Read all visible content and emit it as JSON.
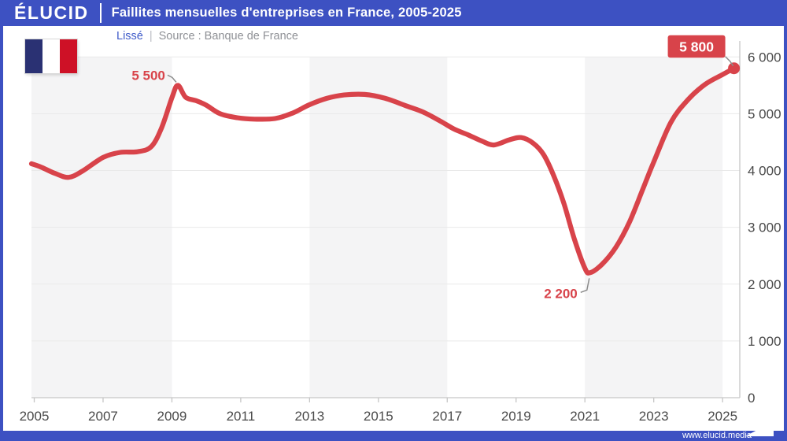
{
  "header": {
    "logo": "ÉLUCID",
    "title": "Faillites mensuelles d'entreprises en France, 2005-2025"
  },
  "subtitle": {
    "series_label": "Lissé",
    "separator": "|",
    "source": "Source : Banque de France"
  },
  "flag": {
    "blue": "#2A3173",
    "white": "#FFFFFF",
    "red": "#CE1126"
  },
  "footer": {
    "url": "www.elucid.media"
  },
  "colors": {
    "accent_blue": "#3D51C2",
    "line_red": "#D8434A",
    "band_gray": "#F4F4F5",
    "grid_gray": "#E9E9E9",
    "axis_gray": "#C6C6C6",
    "tick_text": "#4A4A4A",
    "callout_gray": "#8C8C8C"
  },
  "chart_data": {
    "type": "line",
    "title": "Faillites mensuelles d'entreprises en France, 2005-2025",
    "xlabel": "",
    "ylabel": "",
    "xlim": [
      2004.92,
      2025.5
    ],
    "ylim": [
      0,
      6000
    ],
    "grid": "horizontal",
    "y_ticks": [
      {
        "value": 0,
        "label": "0"
      },
      {
        "value": 1000,
        "label": "1 000"
      },
      {
        "value": 2000,
        "label": "2 000"
      },
      {
        "value": 3000,
        "label": "3 000"
      },
      {
        "value": 4000,
        "label": "4 000"
      },
      {
        "value": 5000,
        "label": "5 000"
      },
      {
        "value": 6000,
        "label": "6 000"
      }
    ],
    "x_ticks": [
      {
        "value": 2005,
        "label": "2005"
      },
      {
        "value": 2007,
        "label": "2007"
      },
      {
        "value": 2009,
        "label": "2009"
      },
      {
        "value": 2011,
        "label": "2011"
      },
      {
        "value": 2013,
        "label": "2013"
      },
      {
        "value": 2015,
        "label": "2015"
      },
      {
        "value": 2017,
        "label": "2017"
      },
      {
        "value": 2019,
        "label": "2019"
      },
      {
        "value": 2021,
        "label": "2021"
      },
      {
        "value": 2023,
        "label": "2023"
      },
      {
        "value": 2025,
        "label": "2025"
      }
    ],
    "shaded_bands": [
      [
        2004.92,
        2009
      ],
      [
        2013,
        2017
      ],
      [
        2021,
        2025
      ]
    ],
    "series": [
      {
        "name": "Faillites mensuelles (lissé)",
        "color": "#D8434A",
        "points": [
          [
            2004.92,
            4120
          ],
          [
            2005.2,
            4060
          ],
          [
            2005.6,
            3950
          ],
          [
            2006.0,
            3880
          ],
          [
            2006.4,
            3990
          ],
          [
            2007.0,
            4230
          ],
          [
            2007.5,
            4320
          ],
          [
            2008.0,
            4330
          ],
          [
            2008.4,
            4420
          ],
          [
            2008.7,
            4750
          ],
          [
            2009.0,
            5280
          ],
          [
            2009.17,
            5500
          ],
          [
            2009.4,
            5290
          ],
          [
            2009.7,
            5230
          ],
          [
            2010.0,
            5150
          ],
          [
            2010.4,
            5000
          ],
          [
            2010.9,
            4930
          ],
          [
            2011.4,
            4905
          ],
          [
            2012.0,
            4915
          ],
          [
            2012.5,
            5010
          ],
          [
            2013.0,
            5160
          ],
          [
            2013.5,
            5270
          ],
          [
            2014.0,
            5330
          ],
          [
            2014.6,
            5340
          ],
          [
            2015.2,
            5270
          ],
          [
            2015.8,
            5140
          ],
          [
            2016.3,
            5030
          ],
          [
            2016.8,
            4870
          ],
          [
            2017.2,
            4730
          ],
          [
            2017.6,
            4630
          ],
          [
            2018.0,
            4520
          ],
          [
            2018.35,
            4450
          ],
          [
            2018.8,
            4540
          ],
          [
            2019.15,
            4580
          ],
          [
            2019.5,
            4480
          ],
          [
            2019.8,
            4280
          ],
          [
            2020.1,
            3900
          ],
          [
            2020.4,
            3400
          ],
          [
            2020.7,
            2780
          ],
          [
            2021.0,
            2280
          ],
          [
            2021.15,
            2200
          ],
          [
            2021.5,
            2350
          ],
          [
            2021.9,
            2650
          ],
          [
            2022.3,
            3100
          ],
          [
            2022.7,
            3700
          ],
          [
            2023.0,
            4150
          ],
          [
            2023.5,
            4850
          ],
          [
            2024.0,
            5250
          ],
          [
            2024.5,
            5520
          ],
          [
            2025.0,
            5690
          ],
          [
            2025.33,
            5800
          ]
        ]
      }
    ],
    "annotations": [
      {
        "text": "5 500",
        "year": 2009.17,
        "value": 5500,
        "style": "text",
        "placement": "upper-left"
      },
      {
        "text": "2 200",
        "year": 2021.15,
        "value": 2200,
        "style": "text",
        "placement": "lower-left"
      },
      {
        "text": "5 800",
        "year": 2025.33,
        "value": 5800,
        "style": "badge",
        "placement": "upper-left"
      }
    ],
    "end_dot": true,
    "legend": "none"
  }
}
